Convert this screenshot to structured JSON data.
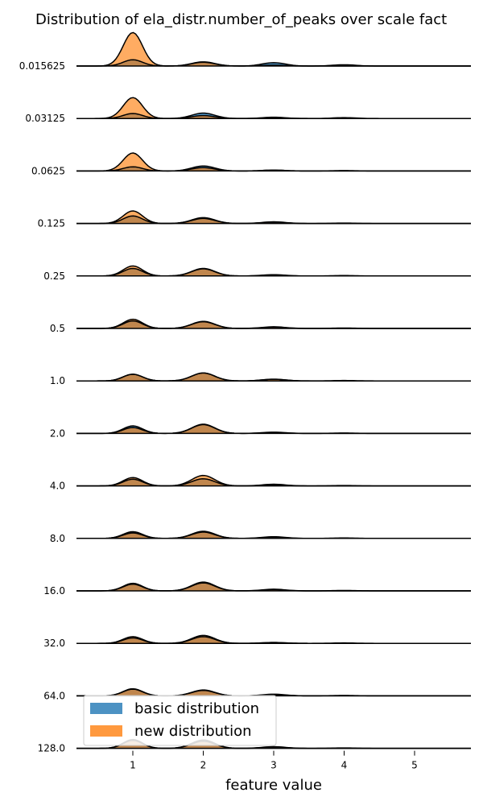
{
  "chart_data": {
    "type": "ridgeline",
    "title": "Distribution of ela_distr.number_of_peaks over scale fact",
    "xlabel": "feature value",
    "ylabel": "",
    "xlim": [
      0.2,
      5.8
    ],
    "x_ticks": [
      1,
      2,
      3,
      4,
      5
    ],
    "grid": false,
    "legend_position": "bottom-left",
    "categories": [
      "0.015625",
      "0.03125",
      "0.0625",
      "0.125",
      "0.25",
      "0.5",
      "1.0",
      "2.0",
      "4.0",
      "8.0",
      "16.0",
      "32.0",
      "64.0",
      "128.0"
    ],
    "series": [
      {
        "name": "basic distribution",
        "color": "#1f77b4",
        "ridges": [
          [
            0.15,
            0.1,
            0.08,
            0.03
          ],
          [
            0.12,
            0.13,
            0.03,
            0.02
          ],
          [
            0.1,
            0.12,
            0.02,
            0.01
          ],
          [
            0.18,
            0.14,
            0.04,
            0.01
          ],
          [
            0.18,
            0.18,
            0.02,
            0.01
          ],
          [
            0.18,
            0.17,
            0.04,
            0.01
          ],
          [
            0.16,
            0.19,
            0.04,
            0.01
          ],
          [
            0.18,
            0.22,
            0.03,
            0.01
          ],
          [
            0.16,
            0.17,
            0.02,
            0.01
          ],
          [
            0.16,
            0.17,
            0.03,
            0.01
          ],
          [
            0.16,
            0.19,
            0.03,
            0.01
          ],
          [
            0.13,
            0.16,
            0.02,
            0.01
          ],
          [
            0.17,
            0.14,
            0.04,
            0.01
          ],
          [
            0.19,
            0.2,
            0.03,
            0.01
          ]
        ]
      },
      {
        "name": "new distribution",
        "color": "#ff7f0e",
        "ridges": [
          [
            0.8,
            0.09,
            0.02,
            0.0
          ],
          [
            0.5,
            0.07,
            0.02,
            0.0
          ],
          [
            0.43,
            0.08,
            0.02,
            0.0
          ],
          [
            0.3,
            0.12,
            0.03,
            0.0
          ],
          [
            0.24,
            0.17,
            0.03,
            0.0
          ],
          [
            0.22,
            0.16,
            0.03,
            0.0
          ],
          [
            0.16,
            0.19,
            0.04,
            0.0
          ],
          [
            0.14,
            0.21,
            0.02,
            0.0
          ],
          [
            0.2,
            0.25,
            0.04,
            0.0
          ],
          [
            0.13,
            0.15,
            0.04,
            0.0
          ],
          [
            0.18,
            0.21,
            0.04,
            0.0
          ],
          [
            0.16,
            0.19,
            0.02,
            0.0
          ],
          [
            0.16,
            0.13,
            0.03,
            0.0
          ],
          [
            0.21,
            0.17,
            0.04,
            0.0
          ]
        ]
      }
    ]
  }
}
